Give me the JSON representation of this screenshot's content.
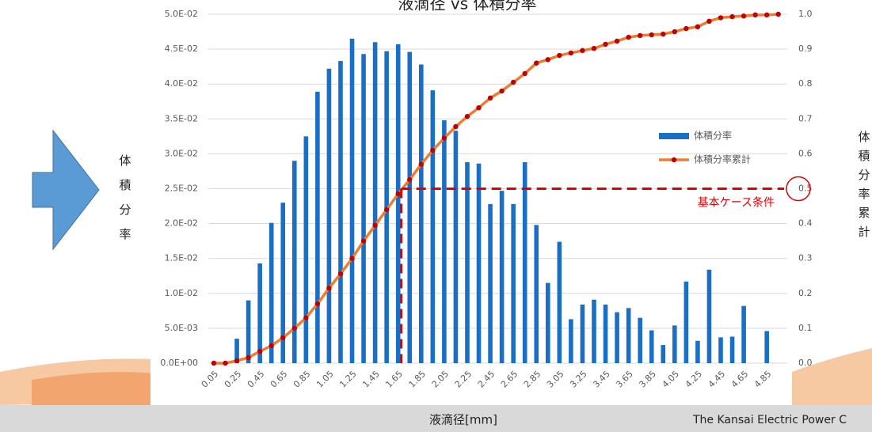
{
  "chart_data": {
    "type": "bar_line",
    "title": "液滴径 vs 体積分率",
    "y_label": "体積分率",
    "y2_label": "体積分率累計",
    "x_label": "液滴径[mm]",
    "footer": "The Kansai Electric Power C",
    "categories": [
      "0.05",
      null,
      "0.25",
      null,
      "0.45",
      null,
      "0.65",
      null,
      "0.85",
      null,
      "1.05",
      null,
      "1.25",
      null,
      "1.45",
      null,
      "1.65",
      null,
      "1.85",
      null,
      "2.05",
      null,
      "2.25",
      null,
      "2.45",
      null,
      "2.65",
      null,
      "2.85",
      null,
      "3.05",
      null,
      "3.25",
      null,
      "3.45",
      null,
      "3.65",
      null,
      "3.85",
      null,
      "4.05",
      null,
      "4.25",
      null,
      "4.45",
      null,
      "4.65",
      null,
      "4.85",
      null
    ],
    "series": [
      {
        "name": "体積分率",
        "color": "#1a6fc4",
        "kind": "bar",
        "values": [
          0,
          0,
          0.0035,
          0.009,
          0.0143,
          0.0201,
          0.023,
          0.029,
          0.0325,
          0.0389,
          0.0422,
          0.0433,
          0.0465,
          0.0443,
          0.046,
          0.0447,
          0.0457,
          0.0446,
          0.0428,
          0.0391,
          0.0348,
          0.0333,
          0.0288,
          0.0286,
          0.0228,
          0.0247,
          0.0228,
          0.0288,
          0.0198,
          0.0115,
          0.0174,
          0.0063,
          0.0084,
          0.0091,
          0.0084,
          0.0073,
          0.0079,
          0.0065,
          0.0047,
          0.0026,
          0.0054,
          0.0117,
          0.0032,
          0.0134,
          0.0037,
          0.0038,
          0.0082,
          0,
          0.0046,
          0
        ]
      },
      {
        "name": "体積分率累計",
        "color": "#ed7d31",
        "marker_color": "#c00000",
        "kind": "line",
        "axis": "y2",
        "values": [
          0,
          0,
          0.007,
          0.016,
          0.034,
          0.05,
          0.073,
          0.1,
          0.13,
          0.17,
          0.215,
          0.256,
          0.3,
          0.35,
          0.395,
          0.44,
          0.485,
          0.526,
          0.57,
          0.61,
          0.645,
          0.678,
          0.707,
          0.732,
          0.76,
          0.78,
          0.805,
          0.83,
          0.86,
          0.87,
          0.882,
          0.889,
          0.896,
          0.902,
          0.914,
          0.923,
          0.934,
          0.939,
          0.941,
          0.943,
          0.95,
          0.959,
          0.964,
          0.98,
          0.99,
          0.993,
          0.995,
          0.998,
          0.998,
          1.0
        ]
      }
    ],
    "ylim": [
      0,
      0.05
    ],
    "yticks": [
      {
        "value": 0,
        "label": "0.0E+00"
      },
      {
        "value": 0.005,
        "label": "5.0E-03"
      },
      {
        "value": 0.01,
        "label": "1.0E-02"
      },
      {
        "value": 0.015,
        "label": "1.5E-02"
      },
      {
        "value": 0.02,
        "label": "2.0E-02"
      },
      {
        "value": 0.025,
        "label": "2.5E-02"
      },
      {
        "value": 0.03,
        "label": "3.0E-02"
      },
      {
        "value": 0.035,
        "label": "3.5E-02"
      },
      {
        "value": 0.04,
        "label": "4.0E-02"
      },
      {
        "value": 0.045,
        "label": "4.5E-02"
      },
      {
        "value": 0.05,
        "label": "5.0E-02"
      }
    ],
    "y2lim": [
      0,
      1
    ],
    "y2ticks": [
      {
        "value": 0,
        "label": "0.0"
      },
      0.1,
      0.2,
      0.3,
      0.4,
      0.5,
      0.6,
      0.7,
      0.8,
      0.9,
      {
        "value": 1,
        "label": "1.0"
      }
    ],
    "grid": true,
    "annotation": {
      "text": "基本ケース条件",
      "color": "#e00000",
      "y2": 0.5,
      "category": "1.65"
    }
  }
}
